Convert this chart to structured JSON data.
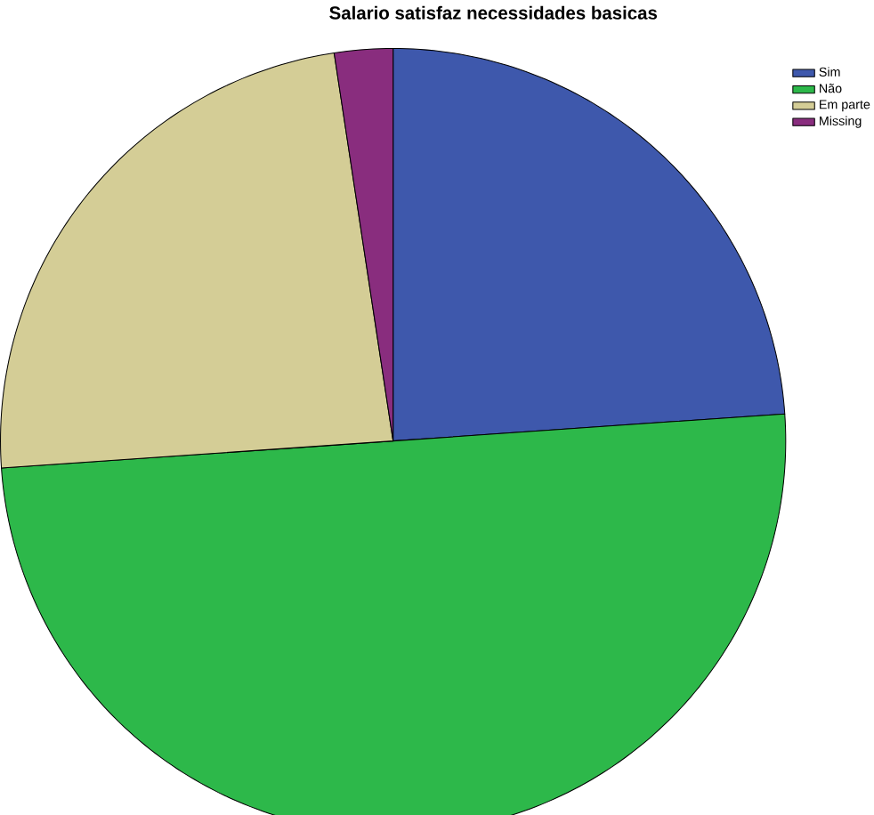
{
  "chart_data": {
    "type": "pie",
    "title": "Salario satisfaz necessidades basicas",
    "categories": [
      "Sim",
      "Não",
      "Em parte",
      "Missing"
    ],
    "values": [
      23.9,
      50.0,
      23.7,
      2.4
    ],
    "colors": [
      "#3e58ac",
      "#2db84a",
      "#d4cd96",
      "#892d7e"
    ],
    "legend": "top right"
  }
}
